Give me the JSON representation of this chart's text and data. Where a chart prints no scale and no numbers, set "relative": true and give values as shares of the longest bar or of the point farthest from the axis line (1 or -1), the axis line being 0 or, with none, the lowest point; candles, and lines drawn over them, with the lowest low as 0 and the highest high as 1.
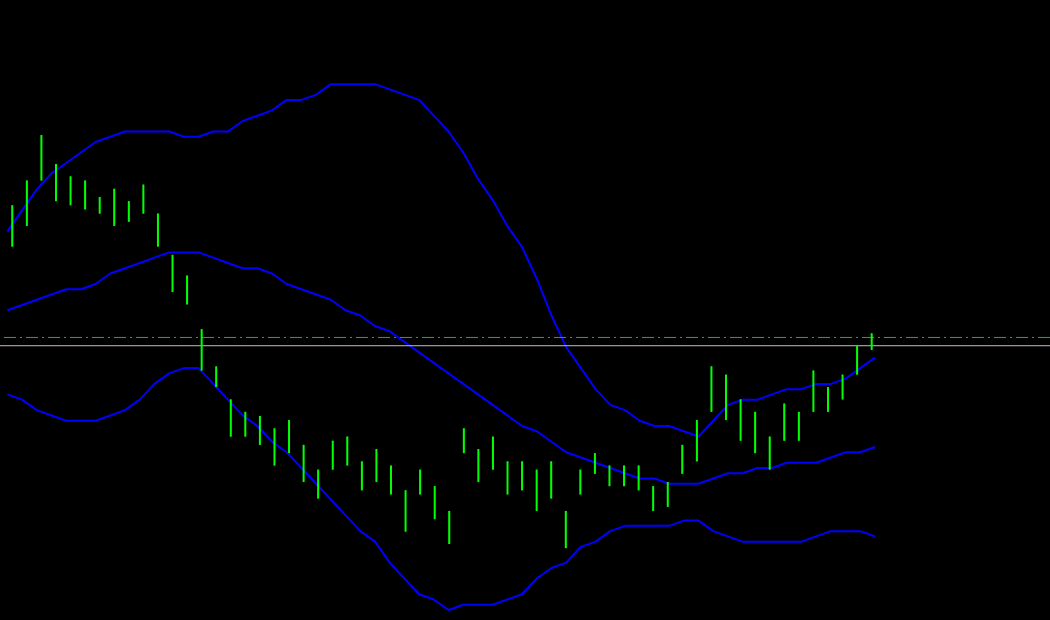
{
  "chart_data": [
    {
      "type": "candlestick",
      "relative": true,
      "categories": [
        null,
        null,
        null,
        null,
        null,
        null,
        null,
        null,
        null,
        null,
        null,
        null,
        null,
        null,
        null,
        null,
        null,
        null,
        null,
        null,
        null,
        null,
        null,
        null,
        null,
        null,
        null,
        null,
        null,
        null,
        null,
        null,
        null,
        null,
        null,
        null,
        null,
        null,
        null,
        null,
        null,
        null,
        null,
        null,
        null,
        null,
        null,
        null,
        null,
        null,
        null,
        null,
        null,
        null,
        null,
        null,
        null,
        null,
        null,
        null
      ],
      "color": "#00ff00",
      "ohlc": [
        [
          0.73,
          0.83,
          0.73,
          0.83
        ],
        [
          0.78,
          0.89,
          0.78,
          0.89
        ],
        [
          0.89,
          1.0,
          0.89,
          1.0
        ],
        [
          0.84,
          0.93,
          0.84,
          0.93
        ],
        [
          0.83,
          0.9,
          0.83,
          0.9
        ],
        [
          0.82,
          0.89,
          0.82,
          0.89
        ],
        [
          0.81,
          0.85,
          0.81,
          0.85
        ],
        [
          0.78,
          0.87,
          0.78,
          0.87
        ],
        [
          0.79,
          0.84,
          0.79,
          0.84
        ],
        [
          0.81,
          0.88,
          0.81,
          0.88
        ],
        [
          0.73,
          0.81,
          0.73,
          0.81
        ],
        [
          0.62,
          0.71,
          0.62,
          0.71
        ],
        [
          0.59,
          0.66,
          0.59,
          0.66
        ],
        [
          0.43,
          0.53,
          0.43,
          0.53
        ],
        [
          0.39,
          0.44,
          0.39,
          0.44
        ],
        [
          0.27,
          0.36,
          0.27,
          0.36
        ],
        [
          0.27,
          0.33,
          0.27,
          0.33
        ],
        [
          0.25,
          0.32,
          0.25,
          0.32
        ],
        [
          0.2,
          0.29,
          0.2,
          0.29
        ],
        [
          0.23,
          0.31,
          0.23,
          0.31
        ],
        [
          0.16,
          0.25,
          0.16,
          0.25
        ],
        [
          0.12,
          0.19,
          0.12,
          0.19
        ],
        [
          0.19,
          0.26,
          0.19,
          0.26
        ],
        [
          0.2,
          0.27,
          0.2,
          0.27
        ],
        [
          0.14,
          0.21,
          0.14,
          0.21
        ],
        [
          0.16,
          0.24,
          0.16,
          0.24
        ],
        [
          0.13,
          0.2,
          0.13,
          0.2
        ],
        [
          0.04,
          0.14,
          0.04,
          0.14
        ],
        [
          0.13,
          0.19,
          0.13,
          0.19
        ],
        [
          0.07,
          0.15,
          0.07,
          0.15
        ],
        [
          0.01,
          0.09,
          0.01,
          0.09
        ],
        [
          0.23,
          0.29,
          0.23,
          0.29
        ],
        [
          0.16,
          0.24,
          0.16,
          0.24
        ],
        [
          0.19,
          0.27,
          0.19,
          0.27
        ],
        [
          0.13,
          0.21,
          0.13,
          0.21
        ],
        [
          0.14,
          0.21,
          0.14,
          0.21
        ],
        [
          0.09,
          0.19,
          0.09,
          0.19
        ],
        [
          0.12,
          0.21,
          0.12,
          0.21
        ],
        [
          0.0,
          0.09,
          0.0,
          0.09
        ],
        [
          0.13,
          0.19,
          0.13,
          0.19
        ],
        [
          0.18,
          0.23,
          0.18,
          0.23
        ],
        [
          0.15,
          0.2,
          0.15,
          0.2
        ],
        [
          0.15,
          0.2,
          0.15,
          0.2
        ],
        [
          0.14,
          0.2,
          0.14,
          0.2
        ],
        [
          0.09,
          0.15,
          0.09,
          0.15
        ],
        [
          0.1,
          0.16,
          0.1,
          0.16
        ],
        [
          0.18,
          0.25,
          0.18,
          0.25
        ],
        [
          0.21,
          0.31,
          0.21,
          0.31
        ],
        [
          0.33,
          0.44,
          0.33,
          0.44
        ],
        [
          0.31,
          0.42,
          0.31,
          0.42
        ],
        [
          0.26,
          0.36,
          0.26,
          0.36
        ],
        [
          0.23,
          0.33,
          0.23,
          0.33
        ],
        [
          0.19,
          0.27,
          0.19,
          0.27
        ],
        [
          0.26,
          0.35,
          0.26,
          0.35
        ],
        [
          0.26,
          0.33,
          0.26,
          0.33
        ],
        [
          0.33,
          0.43,
          0.33,
          0.43
        ],
        [
          0.33,
          0.39,
          0.33,
          0.39
        ],
        [
          0.36,
          0.42,
          0.36,
          0.42
        ],
        [
          0.42,
          0.49,
          0.42,
          0.49
        ],
        [
          0.48,
          0.52,
          0.48,
          0.52
        ]
      ],
      "ref_lines": [
        {
          "axis": "y",
          "value": 0.51,
          "color": "#00c800",
          "line_style": "dashed"
        },
        {
          "axis": "y",
          "value": 0.49,
          "color": "#c0c0c0",
          "line_style": "solid"
        }
      ]
    },
    {
      "type": "line",
      "relative": true,
      "categories": [
        null,
        null,
        null,
        null,
        null,
        null,
        null,
        null,
        null,
        null,
        null,
        null,
        null,
        null,
        null,
        null,
        null,
        null,
        null,
        null,
        null,
        null,
        null,
        null,
        null,
        null,
        null,
        null,
        null,
        null,
        null,
        null,
        null,
        null,
        null,
        null,
        null,
        null,
        null,
        null,
        null,
        null,
        null,
        null,
        null,
        null,
        null,
        null,
        null,
        null,
        null,
        null,
        null,
        null,
        null,
        null,
        null,
        null,
        null,
        null
      ],
      "series": [
        {
          "color": "#0000ff",
          "values": [
            0.72,
            0.76,
            0.8,
            0.83,
            0.85,
            0.87,
            0.89,
            0.9,
            0.91,
            0.91,
            0.91,
            0.91,
            0.9,
            0.9,
            0.91,
            0.91,
            0.93,
            0.94,
            0.95,
            0.97,
            0.97,
            0.98,
            1.0,
            1.0,
            1.0,
            1.0,
            0.99,
            0.98,
            0.97,
            0.94,
            0.91,
            0.87,
            0.82,
            0.78,
            0.73,
            0.69,
            0.63,
            0.56,
            0.5,
            0.46,
            0.42,
            0.39,
            0.38,
            0.36,
            0.35,
            0.35,
            0.34,
            0.33,
            0.36,
            0.39,
            0.4,
            0.4,
            0.41,
            0.42,
            0.42,
            0.43,
            0.43,
            0.44,
            0.46,
            0.48
          ]
        },
        {
          "color": "#0000ff",
          "values": [
            0.57,
            0.58,
            0.59,
            0.6,
            0.61,
            0.61,
            0.62,
            0.64,
            0.65,
            0.66,
            0.67,
            0.68,
            0.68,
            0.68,
            0.67,
            0.66,
            0.65,
            0.65,
            0.64,
            0.62,
            0.61,
            0.6,
            0.59,
            0.57,
            0.56,
            0.54,
            0.53,
            0.51,
            0.49,
            0.47,
            0.45,
            0.43,
            0.41,
            0.39,
            0.37,
            0.35,
            0.34,
            0.32,
            0.3,
            0.29,
            0.28,
            0.27,
            0.26,
            0.25,
            0.25,
            0.24,
            0.24,
            0.24,
            0.25,
            0.26,
            0.26,
            0.27,
            0.27,
            0.28,
            0.28,
            0.28,
            0.29,
            0.3,
            0.3,
            0.31
          ]
        },
        {
          "color": "#0000ff",
          "values": [
            0.41,
            0.4,
            0.38,
            0.37,
            0.36,
            0.36,
            0.36,
            0.37,
            0.38,
            0.4,
            0.43,
            0.45,
            0.46,
            0.46,
            0.43,
            0.4,
            0.37,
            0.35,
            0.32,
            0.3,
            0.27,
            0.24,
            0.21,
            0.18,
            0.15,
            0.13,
            0.09,
            0.06,
            0.03,
            0.02,
            0.0,
            0.01,
            0.01,
            0.01,
            0.02,
            0.03,
            0.06,
            0.08,
            0.09,
            0.12,
            0.13,
            0.15,
            0.16,
            0.16,
            0.16,
            0.16,
            0.17,
            0.17,
            0.15,
            0.14,
            0.13,
            0.13,
            0.13,
            0.13,
            0.13,
            0.14,
            0.15,
            0.15,
            0.15,
            0.14
          ]
        }
      ]
    }
  ]
}
